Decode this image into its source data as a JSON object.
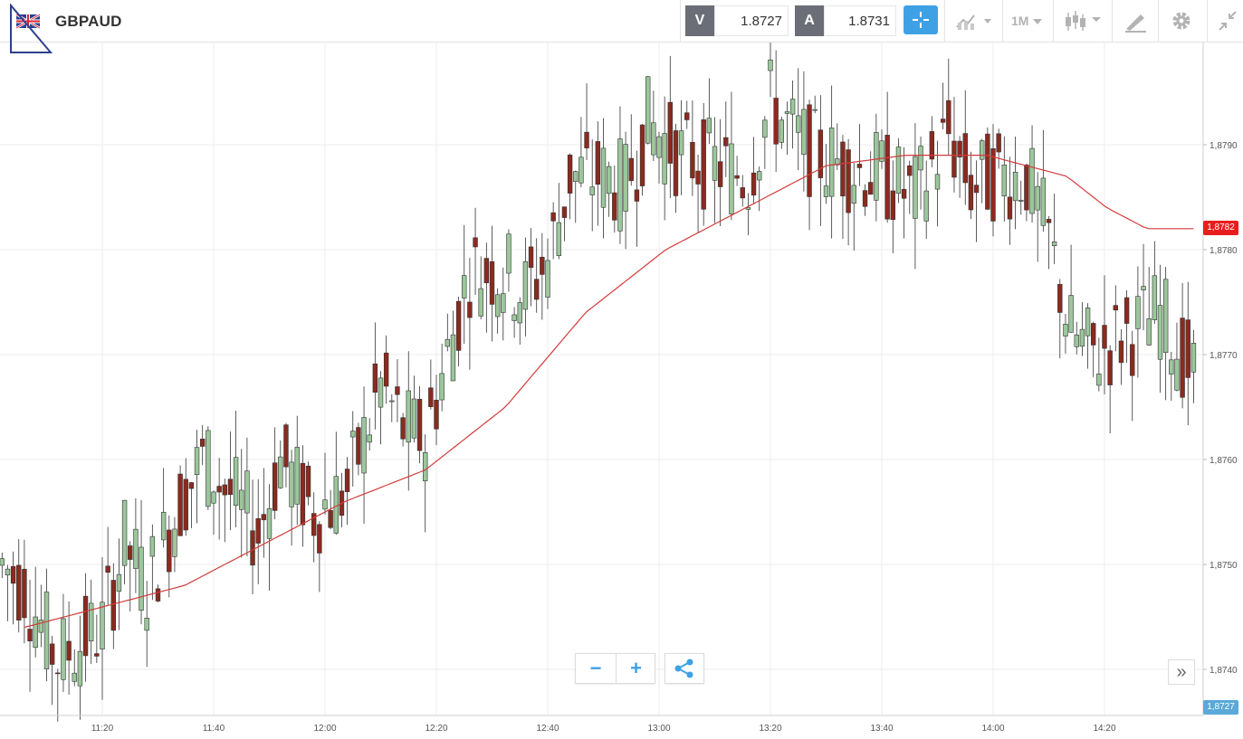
{
  "instrument": {
    "symbol": "GBPAUD"
  },
  "quotes": {
    "bid_label": "V",
    "bid_value": "1.8727",
    "ask_label": "A",
    "ask_value": "1.8731"
  },
  "toolbar": {
    "timeframe": "1M",
    "icons": [
      "crosshair-icon",
      "line-chart-icon",
      "timeframe-dropdown",
      "candlestick-icon",
      "draw-tool-icon",
      "gear-icon",
      "collapse-icon"
    ]
  },
  "colors": {
    "bull": "#9bc79b",
    "bear": "#8b2a1f",
    "ma_line": "#d23b3b",
    "accent": "#3ea1e6",
    "red_tag": "#e81d1d",
    "blue_tag": "#5aa9d6"
  },
  "chart_data": {
    "type": "candlestick",
    "interval": "1M",
    "ylim": [
      1.8718,
      1.8795
    ],
    "y_ticks": [
      "1,8740",
      "1,8750",
      "1,8760",
      "1,8770",
      "1,8780",
      "1,8790"
    ],
    "x_ticks": [
      "11:20",
      "11:40",
      "12:00",
      "12:20",
      "12:40",
      "13:00",
      "13:20",
      "13:40",
      "14:00",
      "14:20"
    ],
    "series": [
      {
        "name": "",
        "points": [
          [
            0,
            1.8744
          ],
          [
            4,
            1.8746
          ],
          [
            8,
            1.8748
          ],
          [
            12,
            1.8752
          ],
          [
            16,
            1.8756
          ],
          [
            20,
            1.8759
          ],
          [
            24,
            1.8765
          ],
          [
            28,
            1.8774
          ],
          [
            32,
            1.878
          ],
          [
            36,
            1.8784
          ],
          [
            40,
            1.8788
          ],
          [
            44,
            1.8789
          ],
          [
            48,
            1.8789
          ],
          [
            52,
            1.8787
          ],
          [
            54,
            1.8784
          ],
          [
            56,
            1.8782
          ]
        ]
      }
    ],
    "price_tags": {
      "ma_value": "1,8782",
      "bid_value": "1,8727"
    }
  }
}
